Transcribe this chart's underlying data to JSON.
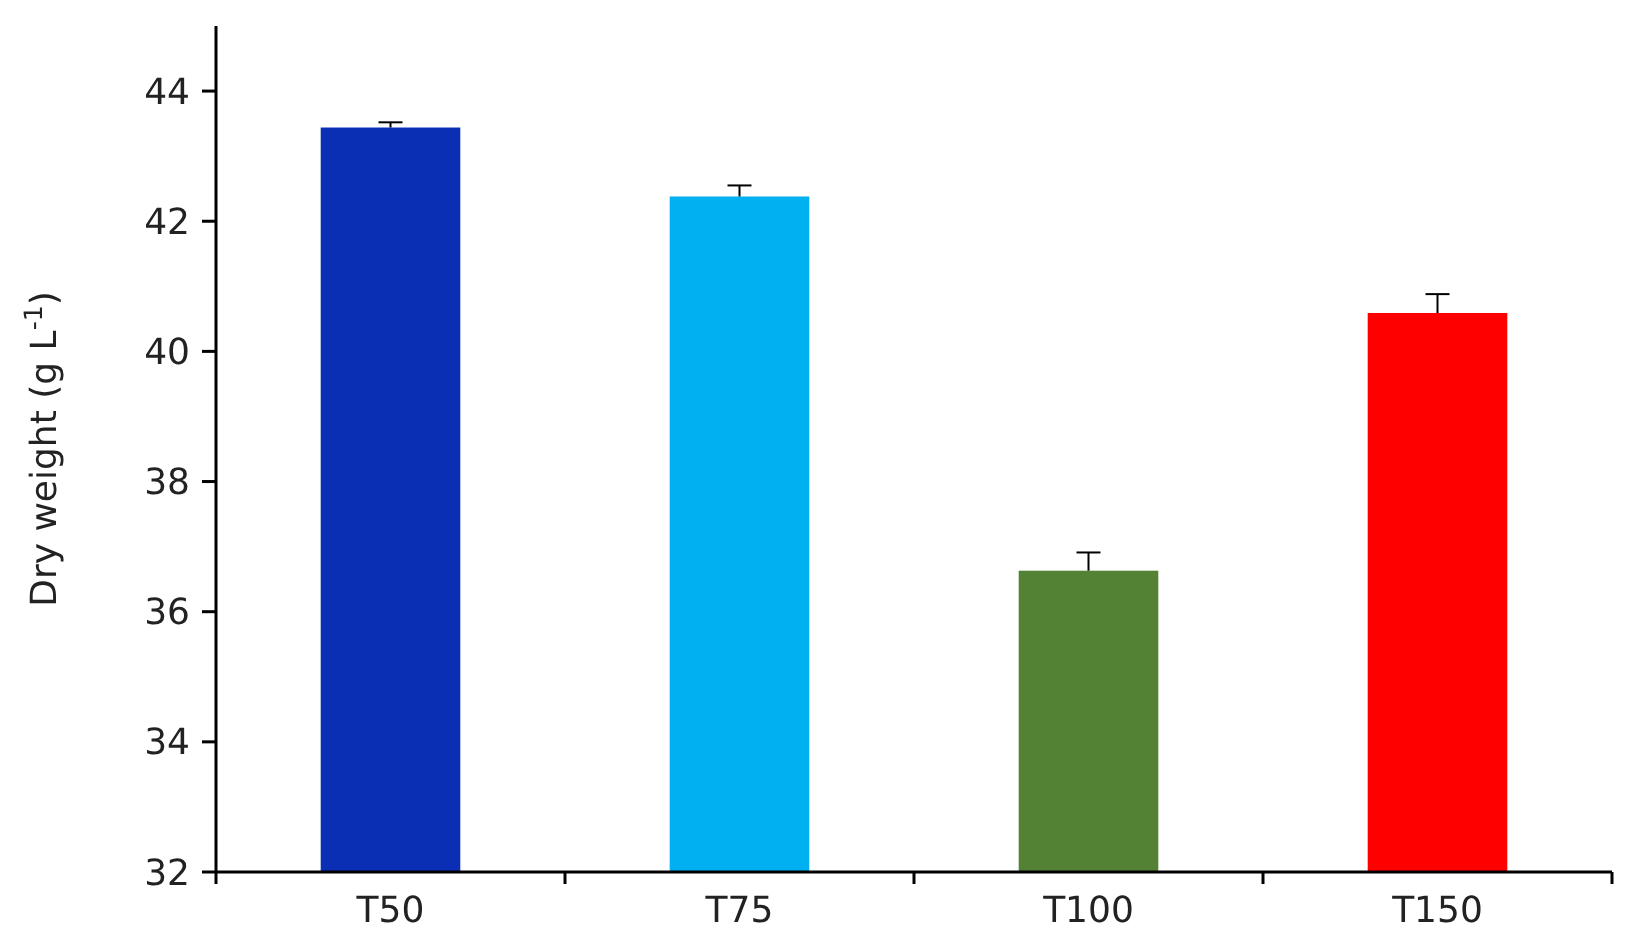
{
  "chart_data": {
    "type": "bar",
    "ylabel": "Dry weight (g L$^{-1}$)",
    "categories": [
      "T50",
      "T75",
      "T100",
      "T150"
    ],
    "values": [
      43.44,
      42.38,
      36.63,
      40.59
    ],
    "colors": [
      "#0a2fb4",
      "#00b0f0",
      "#548235",
      "#ff0000"
    ],
    "errors": [
      [
        43.44,
        43.52
      ],
      [
        42.38,
        42.55
      ],
      [
        36.63,
        36.91
      ],
      [
        40.59,
        40.88
      ]
    ],
    "ylim": [
      32,
      45
    ],
    "yticks": [
      32,
      34,
      36,
      38,
      40,
      42,
      44
    ]
  }
}
